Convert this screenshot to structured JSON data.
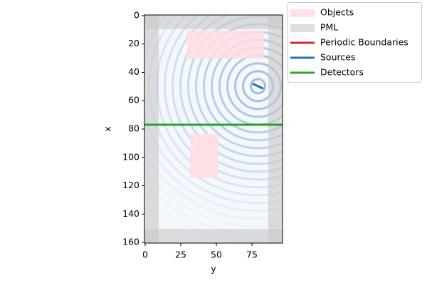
{
  "chart_data": {
    "type": "simulation-map",
    "xlabel": "y",
    "ylabel": "x",
    "xlim": [
      -0.5,
      96.5
    ],
    "ylim": [
      160.5,
      -0.5
    ],
    "xticks": [
      0,
      25,
      50,
      75
    ],
    "yticks": [
      0,
      20,
      40,
      60,
      80,
      100,
      120,
      140,
      160
    ],
    "objects": {
      "name": "Objects",
      "color": "#ffdde2",
      "rects": [
        {
          "y": [
            29.5,
            83.5
          ],
          "x": [
            10.5,
            30.5
          ]
        },
        {
          "y": [
            31.5,
            51.5
          ],
          "x": [
            83.5,
            114.5
          ]
        }
      ]
    },
    "pml": {
      "name": "PML",
      "color": "#c8c8c8",
      "thickness": 10
    },
    "periodic_boundaries": {
      "name": "Periodic Boundaries",
      "color": "#d62728"
    },
    "sources": {
      "name": "Sources",
      "color": "#1f77b4",
      "lines": [
        {
          "y": [
            75.5,
            83
          ],
          "x": [
            48,
            51.5
          ]
        }
      ]
    },
    "detectors": {
      "name": "Detectors",
      "color": "#2ca02c",
      "lines": [
        {
          "x": 77
        }
      ]
    },
    "legend_position": "outside upper right"
  }
}
